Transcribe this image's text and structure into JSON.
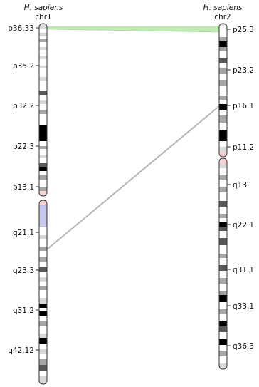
{
  "chromosomes": [
    {
      "id": "chr1",
      "species": "H. sapiens",
      "name": "chr1",
      "band_labels": [
        "p36.33",
        "p35.2",
        "p32.2",
        "p22.3",
        "p13.1",
        "q21.1",
        "q23.3",
        "q31.2",
        "q42.12"
      ]
    },
    {
      "id": "chr2",
      "species": "H. sapiens",
      "name": "chr2",
      "band_labels": [
        "p25.3",
        "p23.2",
        "p16.1",
        "p11.2",
        "q13",
        "q22.1",
        "q31.1",
        "q33.1",
        "q36.3"
      ]
    }
  ],
  "synteny_links": [
    {
      "from": "chr1 p36.33",
      "to": "chr2 p25.3",
      "kind": "block",
      "color": "#bfeab4"
    },
    {
      "from": "chr1 q21",
      "to": "chr2 p16.1",
      "kind": "line",
      "color": "#b5b5b5"
    }
  ],
  "colors": {
    "gneg": "#ffffff",
    "gpos25": "#d9d9d9",
    "gpos50": "#a6a6a6",
    "gpos75": "#595959",
    "gpos100": "#000000",
    "centromere": "#f6d3d3",
    "heterochromatin": "#c8c8ee",
    "outline": "#333333"
  }
}
